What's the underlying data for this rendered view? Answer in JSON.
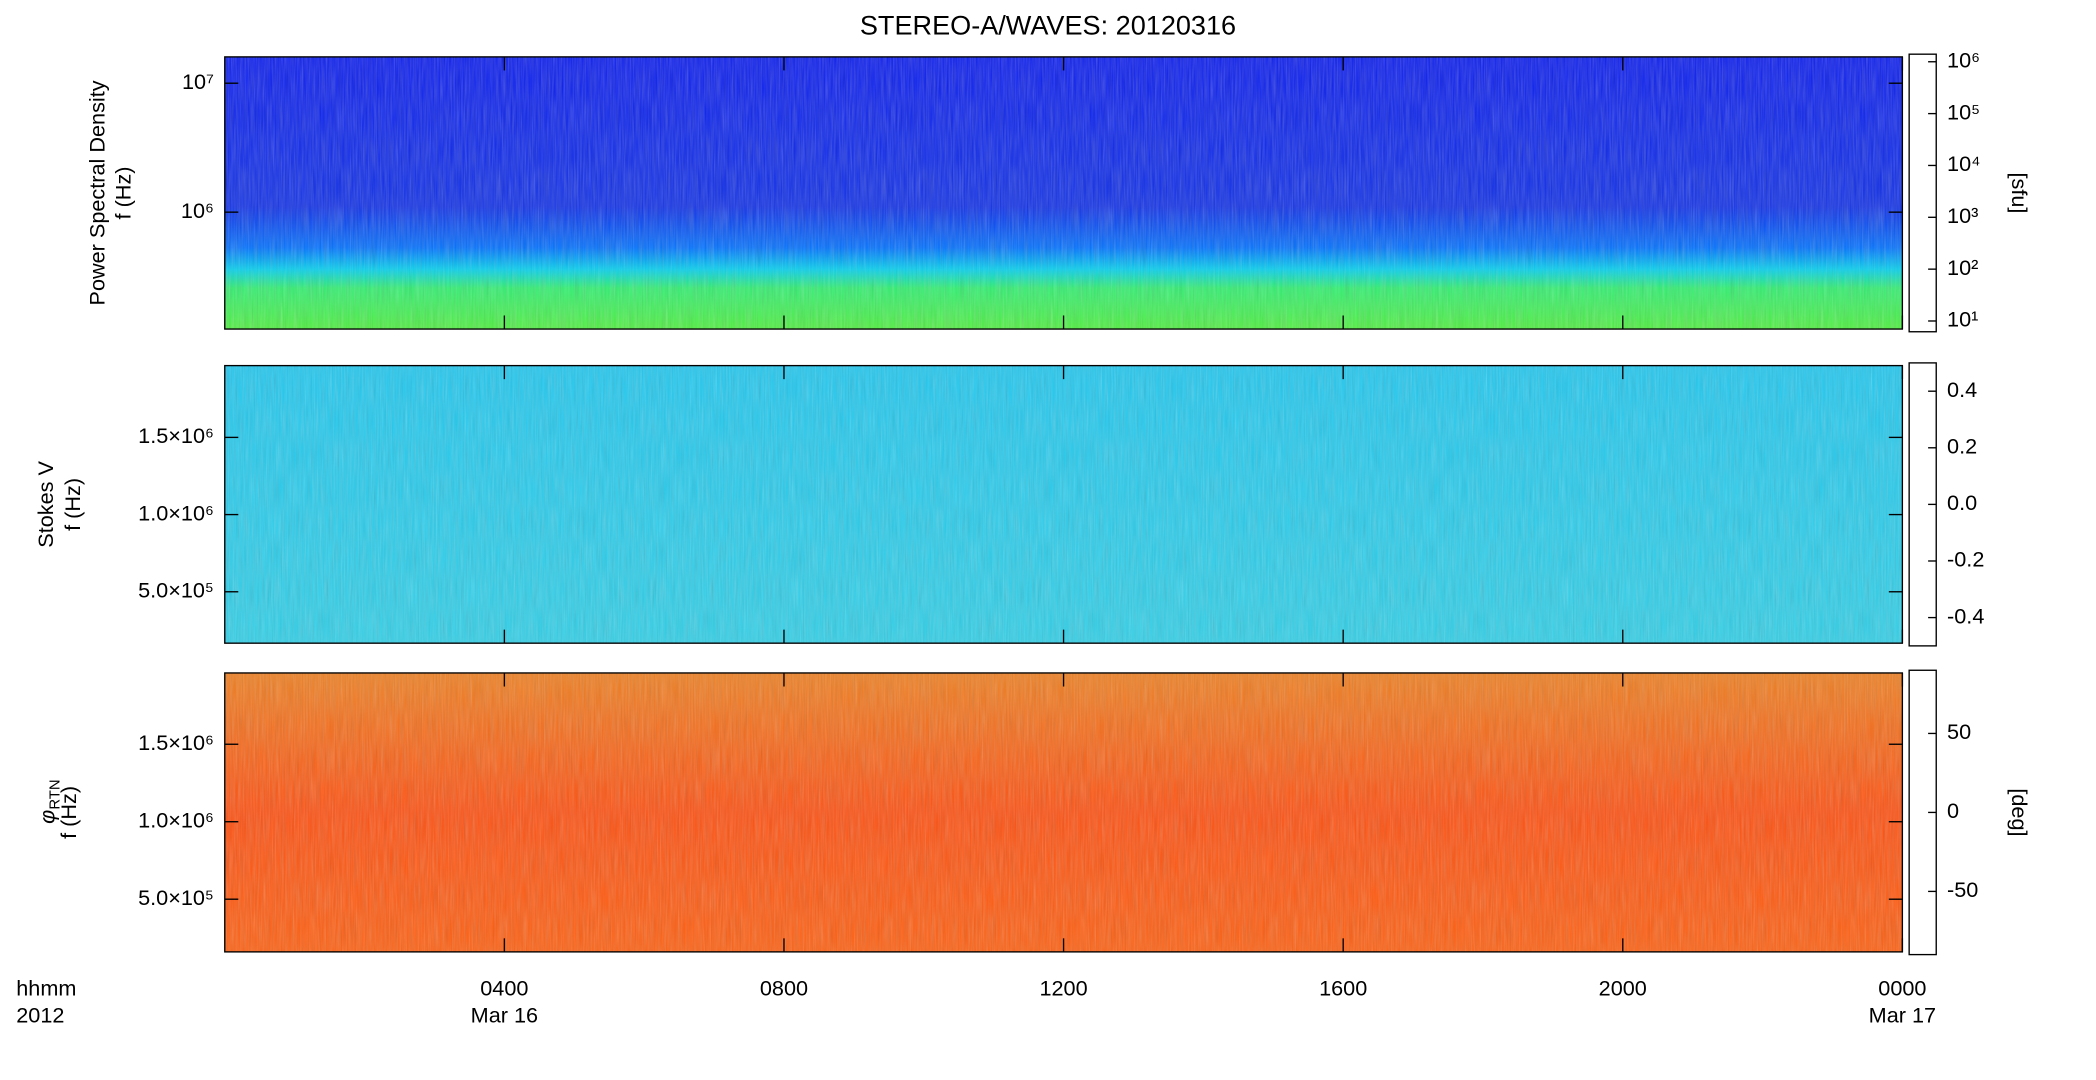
{
  "chart_data": {
    "type": "spectrogram",
    "title": "STEREO-A/WAVES: 20120316",
    "xlim": [
      0,
      24
    ],
    "xticks": [
      {
        "value": 4,
        "label": "0400"
      },
      {
        "value": 8,
        "label": "0800"
      },
      {
        "value": 12,
        "label": "1200"
      },
      {
        "value": 16,
        "label": "1600"
      },
      {
        "value": 20,
        "label": "2000"
      },
      {
        "value": 24,
        "label": "0000"
      }
    ],
    "xticks_date": [
      {
        "value": 4,
        "label": "Mar 16"
      },
      {
        "value": 24,
        "label": "Mar 17"
      }
    ],
    "xlabel": [
      "hhmm",
      "2012"
    ],
    "panels": [
      {
        "ylabel": [
          "Power Spectral Density",
          "f (Hz)"
        ],
        "yscale": "log",
        "ylim": [
          124000,
          16000000
        ],
        "yticks": [
          {
            "value": 1000000,
            "label": "10⁶"
          },
          {
            "value": 10000000,
            "label": "10⁷"
          }
        ],
        "colorbar": {
          "scale": "log",
          "lim": [
            6.2,
            1400000
          ],
          "label": "[sfu]",
          "ticks": [
            {
              "value": 10,
              "label": "10¹"
            },
            {
              "value": 100,
              "label": "10²"
            },
            {
              "value": 1000,
              "label": "10³"
            },
            {
              "value": 10000,
              "label": "10⁴"
            },
            {
              "value": 100000,
              "label": "10⁵"
            },
            {
              "value": 1000000,
              "label": "10⁶"
            }
          ]
        }
      },
      {
        "ylabel": [
          "Stokes V",
          "f (Hz)"
        ],
        "yscale": "linear",
        "ylim": [
          167000,
          1965000
        ],
        "yticks": [
          {
            "value": 500000,
            "label": "5.0×10⁵"
          },
          {
            "value": 1000000,
            "label": "1.0×10⁶"
          },
          {
            "value": 1500000,
            "label": "1.5×10⁶"
          }
        ],
        "colorbar": {
          "scale": "linear",
          "lim": [
            -0.5,
            0.5
          ],
          "ticks": [
            {
              "value": -0.4,
              "label": "-0.4"
            },
            {
              "value": -0.2,
              "label": "-0.2"
            },
            {
              "value": 0,
              "label": "0.0"
            },
            {
              "value": 0.2,
              "label": "0.2"
            },
            {
              "value": 0.4,
              "label": "0.4"
            }
          ]
        }
      },
      {
        "ylabel": [
          "f (Hz)"
        ],
        "ylabel_symbol": "φ",
        "ylabel_subscript": "RTN",
        "yscale": "linear",
        "ylim": [
          160000,
          1960000
        ],
        "yticks": [
          {
            "value": 500000,
            "label": "5.0×10⁵"
          },
          {
            "value": 1000000,
            "label": "1.0×10⁶"
          },
          {
            "value": 1500000,
            "label": "1.5×10⁶"
          }
        ],
        "colorbar": {
          "scale": "linear",
          "lim": [
            -90,
            90
          ],
          "label": "[deg]",
          "ticks": [
            -50,
            0,
            50
          ]
        }
      }
    ]
  }
}
